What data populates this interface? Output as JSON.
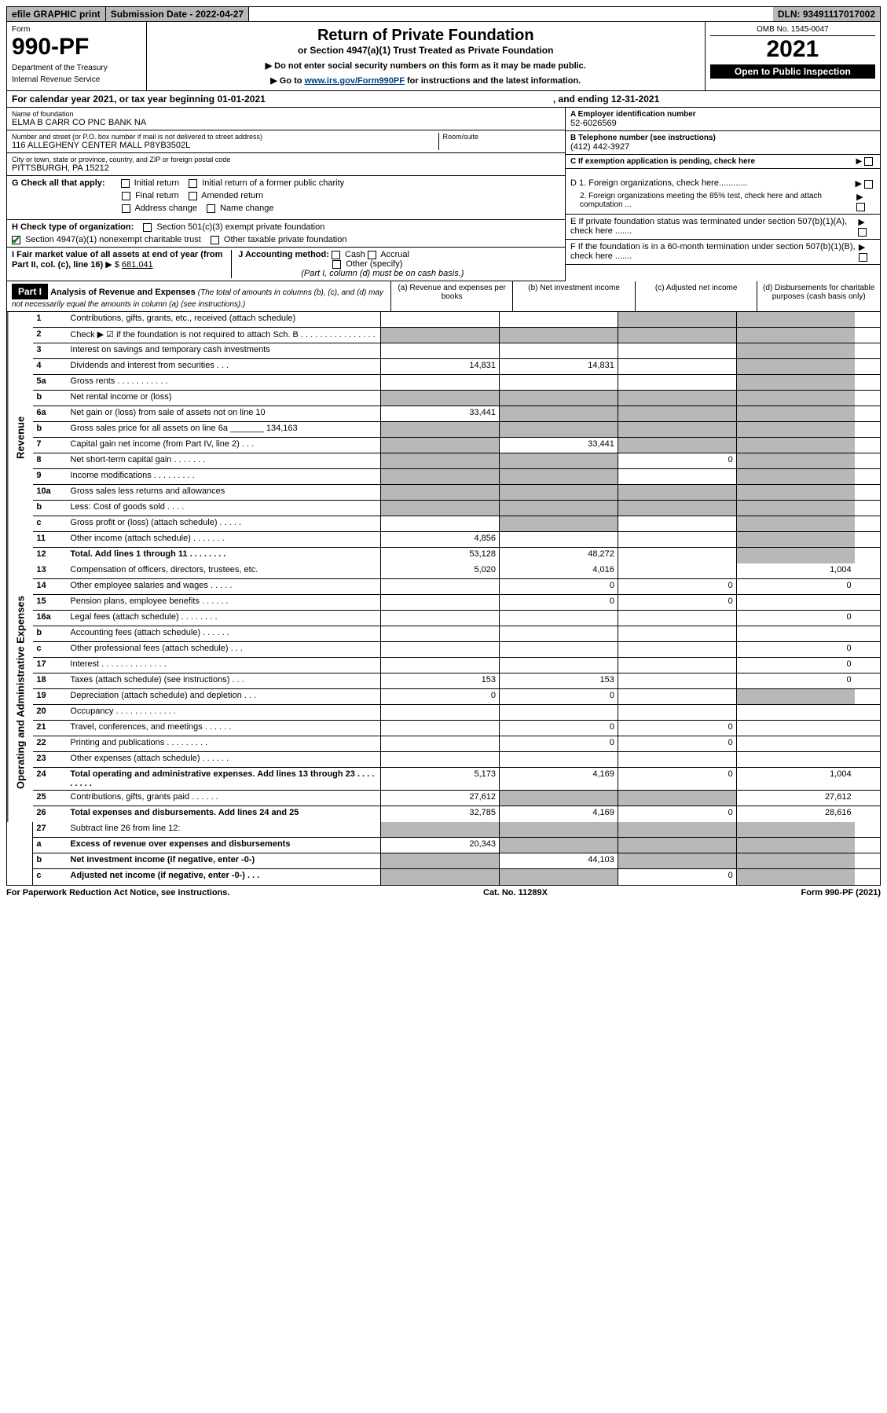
{
  "topbar": {
    "efile": "efile GRAPHIC print",
    "submission": "Submission Date - 2022-04-27",
    "dln": "DLN: 93491117017002"
  },
  "header": {
    "form_label": "Form",
    "form_number": "990-PF",
    "dept1": "Department of the Treasury",
    "dept2": "Internal Revenue Service",
    "title": "Return of Private Foundation",
    "subtitle": "or Section 4947(a)(1) Trust Treated as Private Foundation",
    "note1": "▶ Do not enter social security numbers on this form as it may be made public.",
    "note2_pre": "▶ Go to ",
    "note2_link": "www.irs.gov/Form990PF",
    "note2_post": " for instructions and the latest information.",
    "omb": "OMB No. 1545-0047",
    "year": "2021",
    "open": "Open to Public Inspection"
  },
  "calendar": {
    "text": "For calendar year 2021, or tax year beginning 01-01-2021",
    "ending": ", and ending 12-31-2021"
  },
  "entity": {
    "name_label": "Name of foundation",
    "name": "ELMA B CARR CO PNC BANK NA",
    "addr_label": "Number and street (or P.O. box number if mail is not delivered to street address)",
    "addr": "116 ALLEGHENY CENTER MALL P8YB3502L",
    "room_label": "Room/suite",
    "city_label": "City or town, state or province, country, and ZIP or foreign postal code",
    "city": "PITTSBURGH, PA  15212",
    "ein_label": "A Employer identification number",
    "ein": "52-6026569",
    "phone_label": "B Telephone number (see instructions)",
    "phone": "(412) 442-3927",
    "c_label": "C If exemption application is pending, check here",
    "d1": "D 1. Foreign organizations, check here............",
    "d2": "2. Foreign organizations meeting the 85% test, check here and attach computation ...",
    "e_label": "E  If private foundation status was terminated under section 507(b)(1)(A), check here .......",
    "f_label": "F  If the foundation is in a 60-month termination under section 507(b)(1)(B), check here .......",
    "g_label": "G Check all that apply:",
    "g_opts": [
      "Initial return",
      "Initial return of a former public charity",
      "Final return",
      "Amended return",
      "Address change",
      "Name change"
    ],
    "h_label": "H Check type of organization:",
    "h_opts": [
      "Section 501(c)(3) exempt private foundation",
      "Section 4947(a)(1) nonexempt charitable trust",
      "Other taxable private foundation"
    ],
    "i_label": "I Fair market value of all assets at end of year (from Part II, col. (c), line 16)",
    "i_value": "681,041",
    "j_label": "J Accounting method:",
    "j_opts": [
      "Cash",
      "Accrual",
      "Other (specify)"
    ],
    "j_note": "(Part I, column (d) must be on cash basis.)"
  },
  "part1": {
    "label": "Part I",
    "title": "Analysis of Revenue and Expenses",
    "title_note": "(The total of amounts in columns (b), (c), and (d) may not necessarily equal the amounts in column (a) (see instructions).)",
    "col_a": "(a)   Revenue and expenses per books",
    "col_b": "(b)   Net investment income",
    "col_c": "(c)   Adjusted net income",
    "col_d": "(d)   Disbursements for charitable purposes (cash basis only)"
  },
  "sections": {
    "revenue": "Revenue",
    "opex": "Operating and Administrative Expenses"
  },
  "lines": [
    {
      "n": "1",
      "d": "Contributions, gifts, grants, etc., received (attach schedule)",
      "a": "",
      "b": "",
      "c": "shaded",
      "dd": "shaded"
    },
    {
      "n": "2",
      "d": "Check ▶ ☑ if the foundation is not required to attach Sch. B   .  .  .  .  .  .  .  .  .  .  .  .  .  .  .  .",
      "a": "shaded",
      "b": "shaded",
      "c": "shaded",
      "dd": "shaded"
    },
    {
      "n": "3",
      "d": "Interest on savings and temporary cash investments",
      "a": "",
      "b": "",
      "c": "",
      "dd": "shaded"
    },
    {
      "n": "4",
      "d": "Dividends and interest from securities   .   .   .",
      "a": "14,831",
      "b": "14,831",
      "c": "",
      "dd": "shaded"
    },
    {
      "n": "5a",
      "d": "Gross rents    .   .   .   .   .   .   .   .   .   .   .",
      "a": "",
      "b": "",
      "c": "",
      "dd": "shaded"
    },
    {
      "n": "b",
      "d": "Net rental income or (loss)  ",
      "a": "shaded",
      "b": "shaded",
      "c": "shaded",
      "dd": "shaded"
    },
    {
      "n": "6a",
      "d": "Net gain or (loss) from sale of assets not on line 10",
      "a": "33,441",
      "b": "shaded",
      "c": "shaded",
      "dd": "shaded"
    },
    {
      "n": "b",
      "d": "Gross sales price for all assets on line 6a _______ 134,163",
      "a": "shaded",
      "b": "shaded",
      "c": "shaded",
      "dd": "shaded"
    },
    {
      "n": "7",
      "d": "Capital gain net income (from Part IV, line 2)   .   .   .",
      "a": "shaded",
      "b": "33,441",
      "c": "shaded",
      "dd": "shaded"
    },
    {
      "n": "8",
      "d": "Net short-term capital gain   .   .   .   .   .   .   .",
      "a": "shaded",
      "b": "shaded",
      "c": "0",
      "dd": "shaded"
    },
    {
      "n": "9",
      "d": "Income modifications  .   .   .   .   .   .   .   .   .",
      "a": "shaded",
      "b": "shaded",
      "c": "",
      "dd": "shaded"
    },
    {
      "n": "10a",
      "d": "Gross sales less returns and allowances",
      "a": "shaded",
      "b": "shaded",
      "c": "shaded",
      "dd": "shaded"
    },
    {
      "n": "b",
      "d": "Less: Cost of goods sold    .   .   .   .",
      "a": "shaded",
      "b": "shaded",
      "c": "shaded",
      "dd": "shaded"
    },
    {
      "n": "c",
      "d": "Gross profit or (loss) (attach schedule)    .   .   .   .   .",
      "a": "",
      "b": "shaded",
      "c": "",
      "dd": "shaded"
    },
    {
      "n": "11",
      "d": "Other income (attach schedule)    .   .   .   .   .   .   .",
      "a": "4,856",
      "b": "",
      "c": "",
      "dd": "shaded"
    },
    {
      "n": "12",
      "d": "Total. Add lines 1 through 11    .   .   .   .   .   .   .   .",
      "a": "53,128",
      "b": "48,272",
      "c": "",
      "dd": "shaded",
      "bold": true
    }
  ],
  "oplines": [
    {
      "n": "13",
      "d": "Compensation of officers, directors, trustees, etc.",
      "a": "5,020",
      "b": "4,016",
      "c": "",
      "dd": "1,004"
    },
    {
      "n": "14",
      "d": "Other employee salaries and wages    .   .   .   .   .",
      "a": "",
      "b": "0",
      "c": "0",
      "dd": "0"
    },
    {
      "n": "15",
      "d": "Pension plans, employee benefits   .   .   .   .   .   .",
      "a": "",
      "b": "0",
      "c": "0",
      "dd": ""
    },
    {
      "n": "16a",
      "d": "Legal fees (attach schedule)  .   .   .   .   .   .   .   .",
      "a": "",
      "b": "",
      "c": "",
      "dd": "0"
    },
    {
      "n": "b",
      "d": "Accounting fees (attach schedule)  .   .   .   .   .   .",
      "a": "",
      "b": "",
      "c": "",
      "dd": ""
    },
    {
      "n": "c",
      "d": "Other professional fees (attach schedule)    .   .   .",
      "a": "",
      "b": "",
      "c": "",
      "dd": "0"
    },
    {
      "n": "17",
      "d": "Interest  .   .   .   .   .   .   .   .   .   .   .   .   .   .",
      "a": "",
      "b": "",
      "c": "",
      "dd": "0"
    },
    {
      "n": "18",
      "d": "Taxes (attach schedule) (see instructions)    .   .   .",
      "a": "153",
      "b": "153",
      "c": "",
      "dd": "0"
    },
    {
      "n": "19",
      "d": "Depreciation (attach schedule) and depletion    .   .   .",
      "a": "0",
      "b": "0",
      "c": "",
      "dd": "shaded"
    },
    {
      "n": "20",
      "d": "Occupancy  .   .   .   .   .   .   .   .   .   .   .   .   .",
      "a": "",
      "b": "",
      "c": "",
      "dd": ""
    },
    {
      "n": "21",
      "d": "Travel, conferences, and meetings  .   .   .   .   .   .",
      "a": "",
      "b": "0",
      "c": "0",
      "dd": ""
    },
    {
      "n": "22",
      "d": "Printing and publications  .   .   .   .   .   .   .   .   .",
      "a": "",
      "b": "0",
      "c": "0",
      "dd": ""
    },
    {
      "n": "23",
      "d": "Other expenses (attach schedule)   .   .   .   .   .   .",
      "a": "",
      "b": "",
      "c": "",
      "dd": ""
    },
    {
      "n": "24",
      "d": "Total operating and administrative expenses. Add lines 13 through 23    .   .   .   .   .   .   .   .   .",
      "a": "5,173",
      "b": "4,169",
      "c": "0",
      "dd": "1,004",
      "bold": true
    },
    {
      "n": "25",
      "d": "Contributions, gifts, grants paid     .   .   .   .   .   .",
      "a": "27,612",
      "b": "shaded",
      "c": "shaded",
      "dd": "27,612"
    },
    {
      "n": "26",
      "d": "Total expenses and disbursements. Add lines 24 and 25",
      "a": "32,785",
      "b": "4,169",
      "c": "0",
      "dd": "28,616",
      "bold": true
    }
  ],
  "bottomlines": [
    {
      "n": "27",
      "d": "Subtract line 26 from line 12:",
      "a": "shaded",
      "b": "shaded",
      "c": "shaded",
      "dd": "shaded"
    },
    {
      "n": "a",
      "d": "Excess of revenue over expenses and disbursements",
      "a": "20,343",
      "b": "shaded",
      "c": "shaded",
      "dd": "shaded",
      "bold": true
    },
    {
      "n": "b",
      "d": "Net investment income (if negative, enter -0-)",
      "a": "shaded",
      "b": "44,103",
      "c": "shaded",
      "dd": "shaded",
      "bold": true
    },
    {
      "n": "c",
      "d": "Adjusted net income (if negative, enter -0-)    .   .   .",
      "a": "shaded",
      "b": "shaded",
      "c": "0",
      "dd": "shaded",
      "bold": true
    }
  ],
  "footer": {
    "left": "For Paperwork Reduction Act Notice, see instructions.",
    "center": "Cat. No. 11289X",
    "right": "Form 990-PF (2021)"
  },
  "colors": {
    "shaded": "#b8b8b8",
    "link": "#004080",
    "check": "#0a7a0a"
  }
}
